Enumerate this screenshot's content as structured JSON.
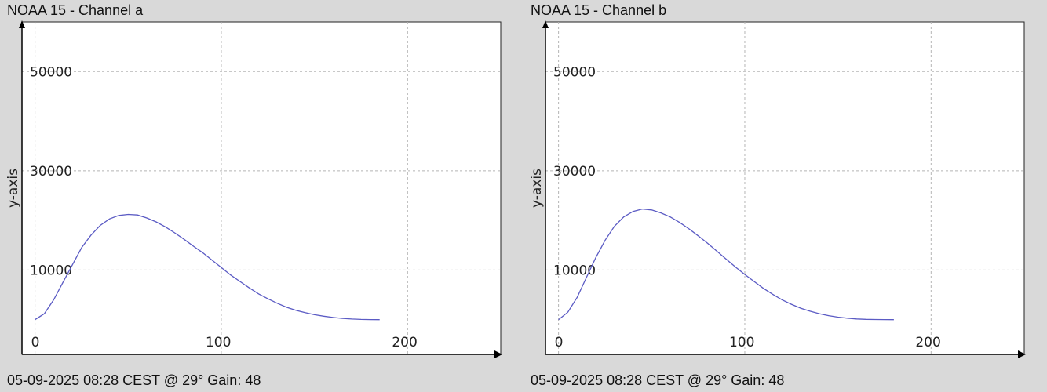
{
  "chart_data": [
    {
      "type": "line",
      "title": "NOAA 15 - Channel a",
      "footer": "05-09-2025 08:28 CEST @ 29° Gain: 48",
      "xlabel": "",
      "ylabel": "y-axis",
      "xlim": [
        -7,
        250
      ],
      "ylim": [
        -7000,
        60000
      ],
      "x_ticks": [
        0,
        100,
        200
      ],
      "y_ticks": [
        10000,
        30000,
        50000
      ],
      "grid": true,
      "series_color": "#5b5bc4",
      "series": [
        {
          "x": [
            0,
            5,
            10,
            15,
            20,
            25,
            30,
            35,
            40,
            45,
            50,
            55,
            60,
            65,
            70,
            75,
            80,
            85,
            90,
            95,
            100,
            105,
            110,
            115,
            120,
            125,
            130,
            135,
            140,
            145,
            150,
            155,
            160,
            165,
            170,
            175,
            180,
            185
          ],
          "values": [
            0,
            1200,
            4000,
            7500,
            11000,
            14500,
            17000,
            19000,
            20300,
            21000,
            21200,
            21100,
            20500,
            19700,
            18700,
            17500,
            16200,
            14800,
            13500,
            12000,
            10500,
            9000,
            7700,
            6400,
            5200,
            4200,
            3300,
            2500,
            1900,
            1400,
            1000,
            700,
            450,
            250,
            120,
            50,
            20,
            0
          ]
        }
      ]
    },
    {
      "type": "line",
      "title": "NOAA 15 - Channel b",
      "footer": "05-09-2025 08:28 CEST @ 29° Gain: 48",
      "xlabel": "",
      "ylabel": "y-axis",
      "xlim": [
        -7,
        250
      ],
      "ylim": [
        -7000,
        60000
      ],
      "x_ticks": [
        0,
        100,
        200
      ],
      "y_ticks": [
        10000,
        30000,
        50000
      ],
      "grid": true,
      "series_color": "#5b5bc4",
      "series": [
        {
          "x": [
            0,
            5,
            10,
            15,
            20,
            25,
            30,
            35,
            40,
            45,
            50,
            55,
            60,
            65,
            70,
            75,
            80,
            85,
            90,
            95,
            100,
            105,
            110,
            115,
            120,
            125,
            130,
            135,
            140,
            145,
            150,
            155,
            160,
            165,
            170,
            175,
            180
          ],
          "values": [
            0,
            1500,
            4500,
            8500,
            12500,
            16000,
            18800,
            20700,
            21800,
            22300,
            22100,
            21500,
            20700,
            19600,
            18300,
            16900,
            15400,
            13800,
            12200,
            10600,
            9100,
            7700,
            6300,
            5100,
            4000,
            3100,
            2300,
            1700,
            1200,
            800,
            500,
            300,
            150,
            70,
            30,
            10,
            0
          ]
        }
      ]
    }
  ]
}
